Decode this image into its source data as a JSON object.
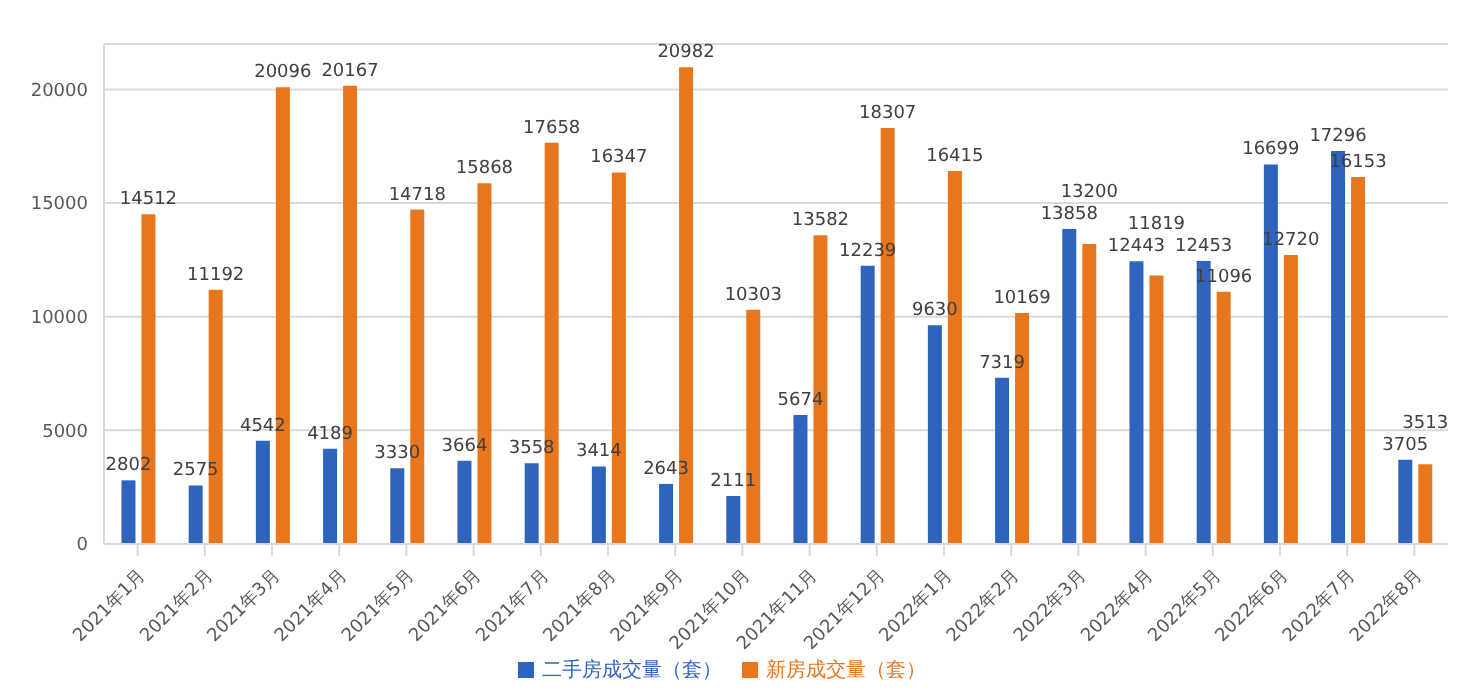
{
  "chart_data": {
    "type": "bar",
    "categories": [
      "2021年1月",
      "2021年2月",
      "2021年3月",
      "2021年4月",
      "2021年5月",
      "2021年6月",
      "2021年7月",
      "2021年8月",
      "2021年9月",
      "2021年10月",
      "2021年11月",
      "2021年12月",
      "2022年1月",
      "2022年2月",
      "2022年3月",
      "2022年4月",
      "2022年5月",
      "2022年6月",
      "2022年7月",
      "2022年8月"
    ],
    "series": [
      {
        "name": "二手房成交量（套）",
        "color": "#2e64be",
        "values": [
          2802,
          2575,
          4542,
          4189,
          3330,
          3664,
          3558,
          3414,
          2643,
          2111,
          5674,
          12239,
          9630,
          7319,
          13858,
          12443,
          12453,
          16699,
          17296,
          3705
        ]
      },
      {
        "name": "新房成交量（套）",
        "color": "#e8761c",
        "values": [
          14512,
          11192,
          20096,
          20167,
          14718,
          15868,
          17658,
          16347,
          20982,
          10303,
          13582,
          18307,
          16415,
          10169,
          13200,
          11819,
          11096,
          12720,
          16153,
          3513
        ]
      }
    ],
    "ylim": [
      0,
      22000
    ],
    "yticks": [
      0,
      5000,
      10000,
      15000,
      20000
    ],
    "grid": "y",
    "legend": "bottom",
    "data_labels": true
  }
}
